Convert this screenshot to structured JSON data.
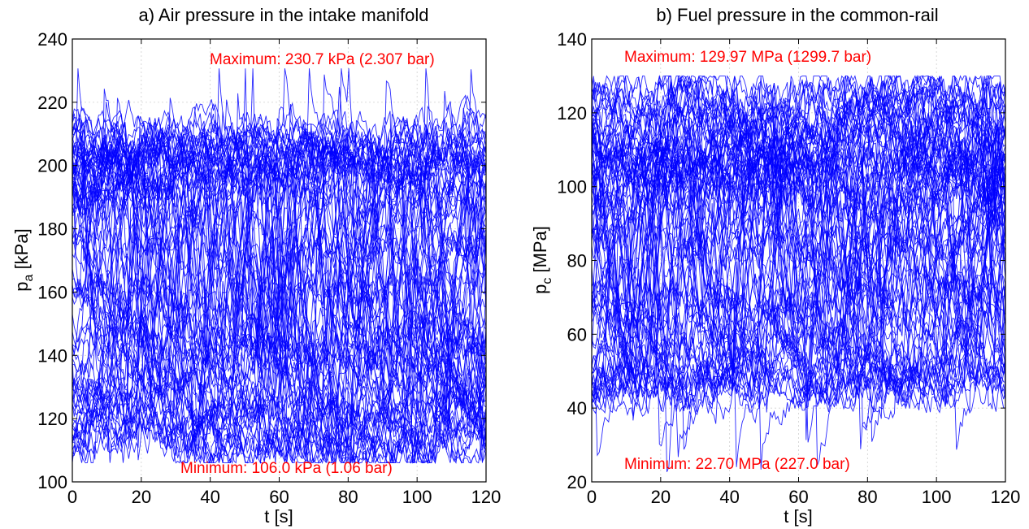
{
  "chart_data": [
    {
      "type": "line",
      "title": "a) Air pressure in the intake manifold",
      "xlabel": "t [s]",
      "ylabel_main": "p",
      "ylabel_sub": "a",
      "ylabel_unit": " [kPa]",
      "xlim": [
        0,
        120
      ],
      "ylim": [
        100,
        240
      ],
      "xticks": [
        0,
        20,
        40,
        60,
        80,
        100,
        120
      ],
      "yticks": [
        100,
        120,
        140,
        160,
        180,
        200,
        220,
        240
      ],
      "grid": true,
      "line_color": "#0000ff",
      "annotation_color": "#ff0000",
      "annotations": {
        "max": "Maximum: 230.7 kPa (2.307 bar)",
        "min": "Minimum: 106.0 kPa (1.06 bar)"
      },
      "max_value": 230.7,
      "min_value": 106.0,
      "series_summary": "dense overlay of many pressure traces",
      "trace_profile": {
        "levels": [
          200,
          203,
          110,
          115,
          120,
          125,
          135,
          145,
          160,
          175,
          190,
          198,
          205,
          210
        ],
        "range": [
          106.0,
          230.7
        ]
      }
    },
    {
      "type": "line",
      "title": "b) Fuel pressure in the common-rail",
      "xlabel": "t [s]",
      "ylabel_main": "p",
      "ylabel_sub": "c",
      "ylabel_unit": " [MPa]",
      "xlim": [
        0,
        120
      ],
      "ylim": [
        20,
        140
      ],
      "xticks": [
        0,
        20,
        40,
        60,
        80,
        100,
        120
      ],
      "yticks": [
        20,
        40,
        60,
        80,
        100,
        120,
        140
      ],
      "grid": true,
      "line_color": "#0000ff",
      "annotation_color": "#ff0000",
      "annotations": {
        "max": "Maximum: 129.97 MPa (1299.7 bar)",
        "min": "Minimum: 22.70 MPa (227.0 bar)"
      },
      "max_value": 129.97,
      "min_value": 22.7,
      "series_summary": "dense overlay of many pressure traces",
      "trace_profile": {
        "levels": [
          105,
          107,
          102,
          110,
          125,
          122,
          46,
          47,
          60,
          70,
          85,
          95,
          115,
          50
        ],
        "range": [
          22.7,
          129.97
        ]
      }
    }
  ]
}
